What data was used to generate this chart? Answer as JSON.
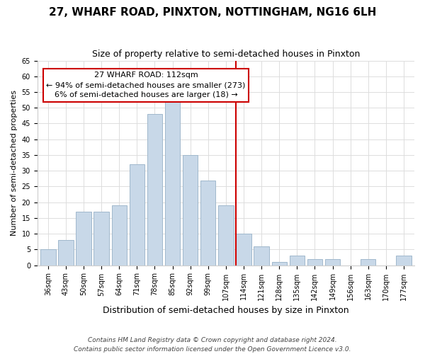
{
  "title": "27, WHARF ROAD, PINXTON, NOTTINGHAM, NG16 6LH",
  "subtitle": "Size of property relative to semi-detached houses in Pinxton",
  "xlabel": "Distribution of semi-detached houses by size in Pinxton",
  "ylabel": "Number of semi-detached properties",
  "bar_labels": [
    "36sqm",
    "43sqm",
    "50sqm",
    "57sqm",
    "64sqm",
    "71sqm",
    "78sqm",
    "85sqm",
    "92sqm",
    "99sqm",
    "107sqm",
    "114sqm",
    "121sqm",
    "128sqm",
    "135sqm",
    "142sqm",
    "149sqm",
    "156sqm",
    "163sqm",
    "170sqm",
    "177sqm"
  ],
  "bar_values": [
    5,
    8,
    17,
    17,
    19,
    32,
    48,
    54,
    35,
    27,
    19,
    10,
    6,
    1,
    3,
    2,
    2,
    0,
    2,
    0,
    3
  ],
  "bar_color": "#c8d8e8",
  "bar_edge_color": "#a0b8cc",
  "annotation_line_x_label": "114sqm",
  "annotation_line_color": "#cc0000",
  "annotation_box_text": "27 WHARF ROAD: 112sqm\n← 94% of semi-detached houses are smaller (273)\n6% of semi-detached houses are larger (18) →",
  "annotation_box_facecolor": "#ffffff",
  "annotation_box_edgecolor": "#cc0000",
  "ylim": [
    0,
    65
  ],
  "yticks": [
    0,
    5,
    10,
    15,
    20,
    25,
    30,
    35,
    40,
    45,
    50,
    55,
    60,
    65
  ],
  "grid_color": "#dddddd",
  "footnote": "Contains HM Land Registry data © Crown copyright and database right 2024.\nContains public sector information licensed under the Open Government Licence v3.0.",
  "title_fontsize": 11,
  "subtitle_fontsize": 9,
  "xlabel_fontsize": 9,
  "ylabel_fontsize": 8,
  "tick_fontsize": 7,
  "annot_fontsize": 8,
  "footnote_fontsize": 6.5
}
